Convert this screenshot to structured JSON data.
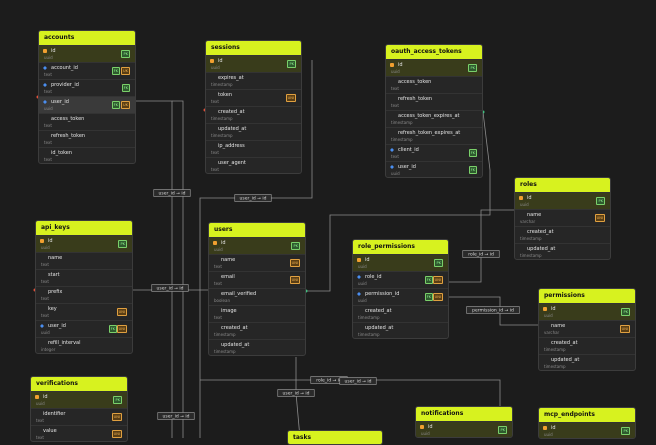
{
  "tables": [
    {
      "name": "accounts",
      "columns": [
        {
          "name": "id",
          "type": "uuid",
          "keys": [
            "PK"
          ]
        },
        {
          "name": "account_id",
          "type": "text",
          "keys": [
            "FK",
            "UK"
          ]
        },
        {
          "name": "provider_id",
          "type": "text",
          "keys": [
            "FK"
          ]
        },
        {
          "name": "user_id",
          "type": "uuid",
          "keys": [
            "FK",
            "UK"
          ]
        },
        {
          "name": "access_token",
          "type": "text",
          "keys": []
        },
        {
          "name": "refresh_token",
          "type": "text",
          "keys": []
        },
        {
          "name": "id_token",
          "type": "text",
          "keys": []
        }
      ]
    },
    {
      "name": "sessions",
      "columns": [
        {
          "name": "id",
          "type": "uuid",
          "keys": [
            "PK"
          ]
        },
        {
          "name": "expires_at",
          "type": "timestamp",
          "keys": []
        },
        {
          "name": "token",
          "type": "text",
          "keys": [
            "UNI"
          ]
        },
        {
          "name": "created_at",
          "type": "timestamp",
          "keys": []
        },
        {
          "name": "updated_at",
          "type": "timestamp",
          "keys": []
        },
        {
          "name": "ip_address",
          "type": "text",
          "keys": []
        },
        {
          "name": "user_agent",
          "type": "text",
          "keys": []
        }
      ]
    },
    {
      "name": "oauth_access_tokens",
      "columns": [
        {
          "name": "id",
          "type": "uuid",
          "keys": [
            "PK"
          ]
        },
        {
          "name": "access_token",
          "type": "text",
          "keys": []
        },
        {
          "name": "refresh_token",
          "type": "text",
          "keys": []
        },
        {
          "name": "access_token_expires_at",
          "type": "timestamp",
          "keys": []
        },
        {
          "name": "refresh_token_expires_at",
          "type": "timestamp",
          "keys": []
        },
        {
          "name": "client_id",
          "type": "text",
          "keys": [
            "FK"
          ]
        },
        {
          "name": "user_id",
          "type": "uuid",
          "keys": [
            "FK"
          ]
        }
      ]
    },
    {
      "name": "roles",
      "columns": [
        {
          "name": "id",
          "type": "uuid",
          "keys": [
            "PK"
          ]
        },
        {
          "name": "name",
          "type": "varchar",
          "keys": [
            "UNI"
          ]
        },
        {
          "name": "created_at",
          "type": "timestamp",
          "keys": []
        },
        {
          "name": "updated_at",
          "type": "timestamp",
          "keys": []
        }
      ]
    },
    {
      "name": "api_keys",
      "columns": [
        {
          "name": "id",
          "type": "uuid",
          "keys": [
            "PK"
          ]
        },
        {
          "name": "name",
          "type": "text",
          "keys": []
        },
        {
          "name": "start",
          "type": "text",
          "keys": []
        },
        {
          "name": "prefix",
          "type": "text",
          "keys": []
        },
        {
          "name": "key",
          "type": "text",
          "keys": [
            "UNI"
          ]
        },
        {
          "name": "user_id",
          "type": "uuid",
          "keys": [
            "FK",
            "UNI"
          ]
        },
        {
          "name": "refill_interval",
          "type": "integer",
          "keys": []
        }
      ]
    },
    {
      "name": "users",
      "columns": [
        {
          "name": "id",
          "type": "uuid",
          "keys": [
            "PK"
          ]
        },
        {
          "name": "name",
          "type": "text",
          "keys": [
            "UNI"
          ]
        },
        {
          "name": "email",
          "type": "text",
          "keys": [
            "UNI"
          ]
        },
        {
          "name": "email_verified",
          "type": "boolean",
          "keys": []
        },
        {
          "name": "image",
          "type": "text",
          "keys": []
        },
        {
          "name": "created_at",
          "type": "timestamp",
          "keys": []
        },
        {
          "name": "updated_at",
          "type": "timestamp",
          "keys": []
        }
      ]
    },
    {
      "name": "role_permissions",
      "columns": [
        {
          "name": "id",
          "type": "uuid",
          "keys": [
            "PK"
          ]
        },
        {
          "name": "role_id",
          "type": "uuid",
          "keys": [
            "FK",
            "UNI"
          ]
        },
        {
          "name": "permission_id",
          "type": "uuid",
          "keys": [
            "FK",
            "UNI"
          ]
        },
        {
          "name": "created_at",
          "type": "timestamp",
          "keys": []
        },
        {
          "name": "updated_at",
          "type": "timestamp",
          "keys": []
        }
      ]
    },
    {
      "name": "permissions",
      "columns": [
        {
          "name": "id",
          "type": "uuid",
          "keys": [
            "PK"
          ]
        },
        {
          "name": "name",
          "type": "varchar",
          "keys": [
            "UNI"
          ]
        },
        {
          "name": "created_at",
          "type": "timestamp",
          "keys": []
        },
        {
          "name": "updated_at",
          "type": "timestamp",
          "keys": []
        }
      ]
    },
    {
      "name": "verifications",
      "columns": [
        {
          "name": "id",
          "type": "uuid",
          "keys": [
            "PK"
          ]
        },
        {
          "name": "identifier",
          "type": "text",
          "keys": [
            "UNI"
          ]
        },
        {
          "name": "value",
          "type": "text",
          "keys": [
            "UNI"
          ]
        }
      ]
    },
    {
      "name": "notifications",
      "columns": [
        {
          "name": "id",
          "type": "uuid",
          "keys": [
            "PK"
          ]
        }
      ]
    },
    {
      "name": "mcp_endpoints",
      "columns": [
        {
          "name": "id",
          "type": "uuid",
          "keys": [
            "PK"
          ]
        }
      ]
    },
    {
      "name": "tasks",
      "columns": []
    }
  ],
  "edges": [
    {
      "label": "user_id → id"
    },
    {
      "label": "user_id → id"
    },
    {
      "label": "user_id → id"
    },
    {
      "label": "user_id → id"
    },
    {
      "label": "role_id → id"
    },
    {
      "label": "user_id → id"
    },
    {
      "label": "role_id → id"
    },
    {
      "label": "permission_id → id"
    },
    {
      "label": "user_id → id"
    }
  ]
}
